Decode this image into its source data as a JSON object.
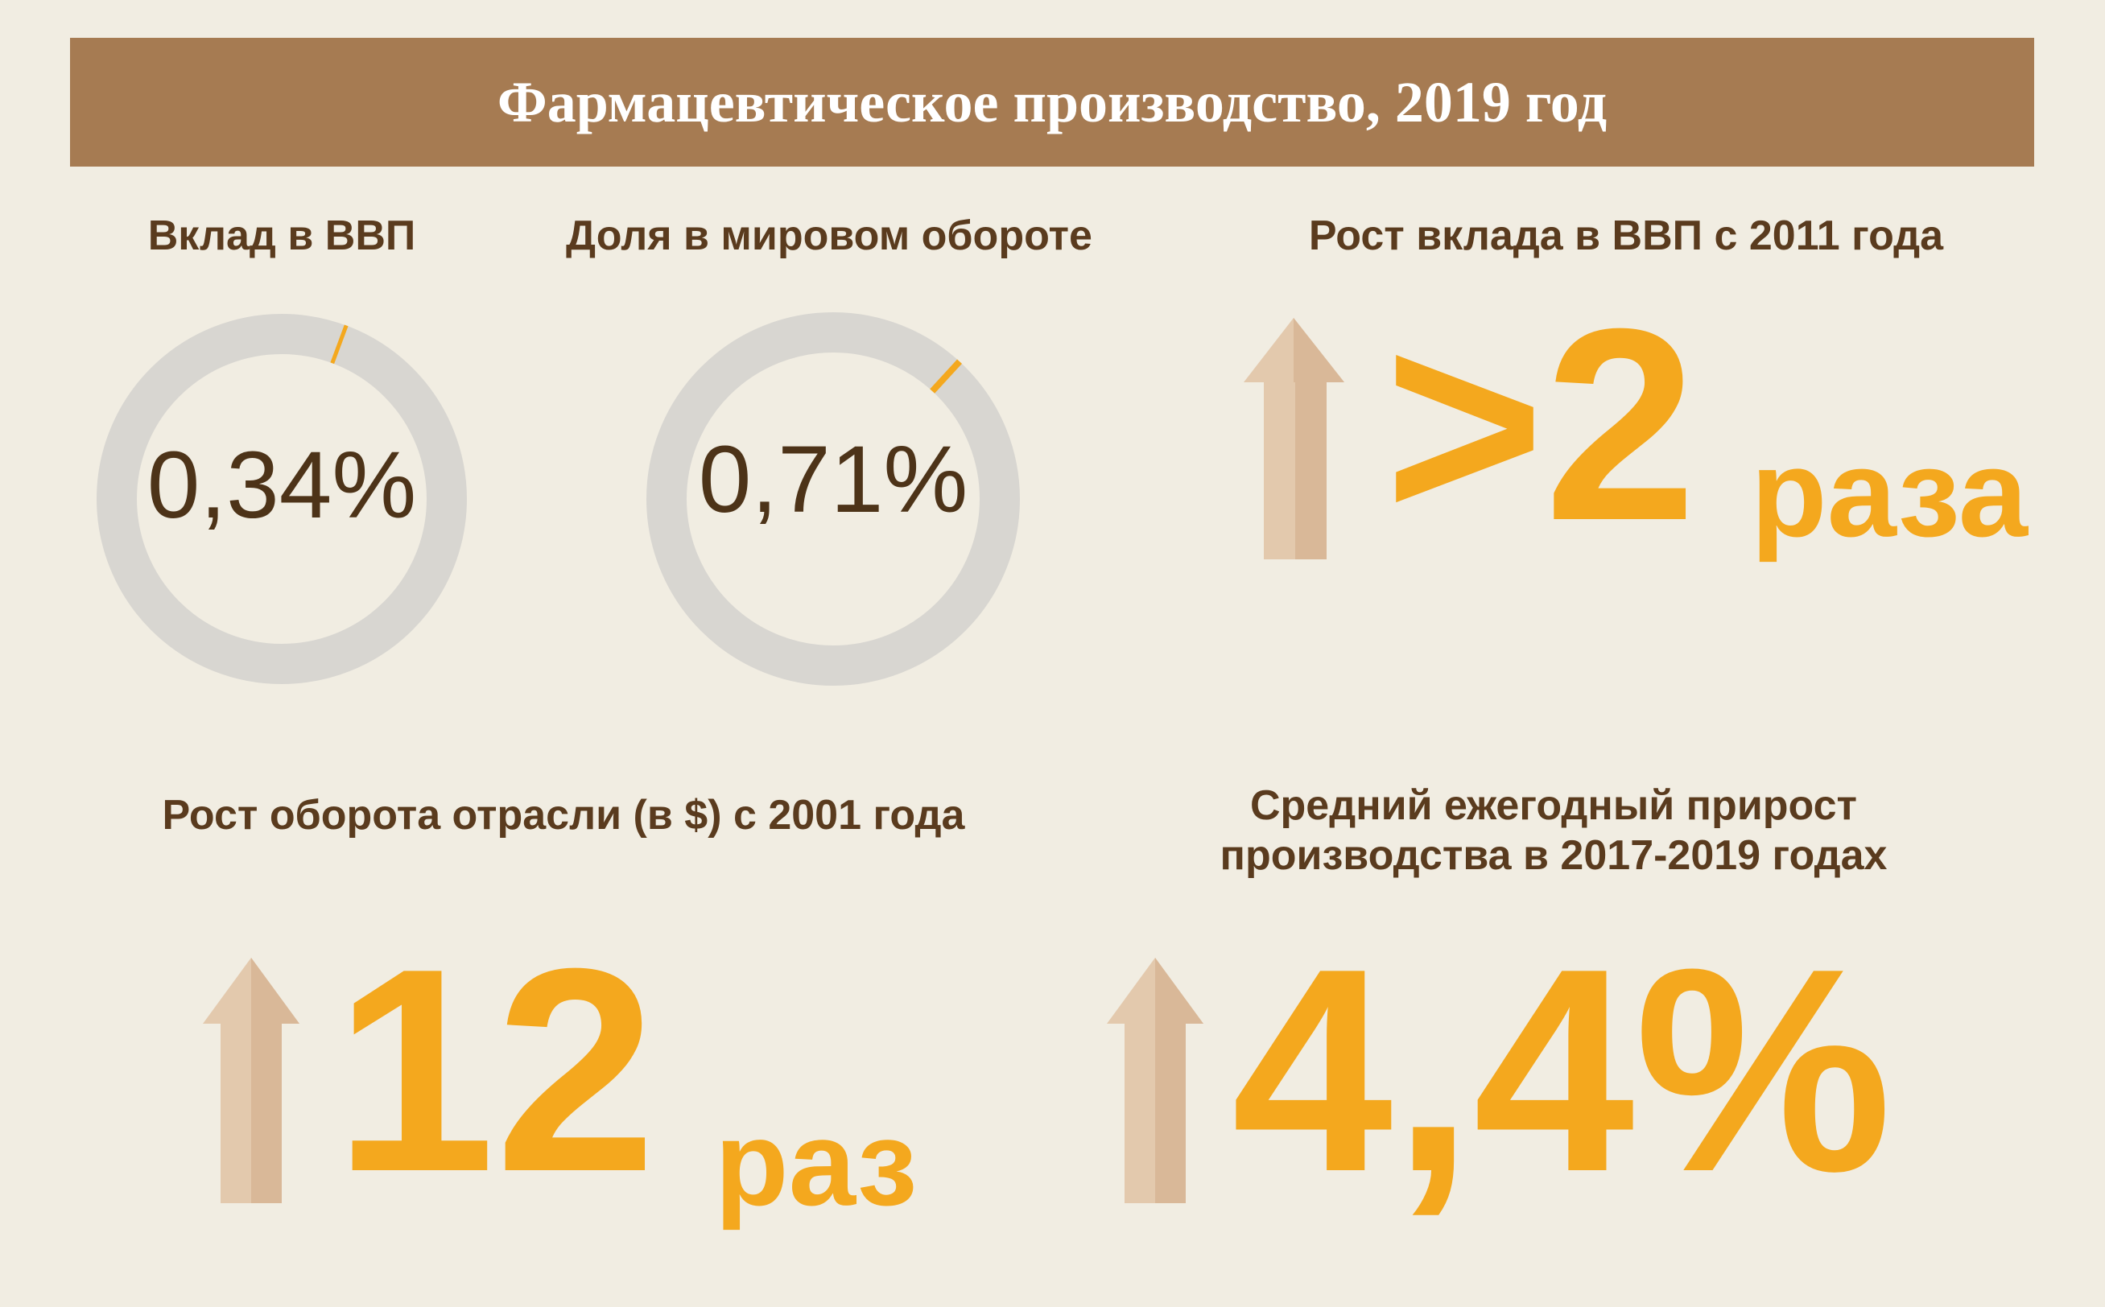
{
  "title": "Фармацевтическое производство, 2019 год",
  "colors": {
    "header": "#a67b52",
    "background": "#f1ede2",
    "accent": "#f4a81e",
    "ring": "#d8d6d1",
    "arrow_light": "#e3c9ad",
    "arrow_dark": "#d9b898",
    "text_dark": "#5a3b1e"
  },
  "chart_data": [
    {
      "type": "pie",
      "title": "Вклад в ВВП",
      "value_label": "0,34%",
      "values": [
        0.34,
        99.66
      ]
    },
    {
      "type": "pie",
      "title": "Доля в мировом обороте",
      "value_label": "0,71%",
      "values": [
        0.71,
        99.29
      ]
    }
  ],
  "stats": {
    "gdp_growth": {
      "label": "Рост вклада в ВВП с 2011 года",
      "value": ">2",
      "unit": "раза",
      "icon": "arrow-up-icon"
    },
    "turnover_growth": {
      "label": "Рост оборота отрасли (в $) с 2001 года",
      "value": "12",
      "unit": "раз",
      "icon": "arrow-up-icon"
    },
    "annual_growth": {
      "label_line1": "Средний ежегодный прирост",
      "label_line2": "производства в 2017-2019 годах",
      "value": "4,4%",
      "icon": "arrow-up-icon"
    }
  }
}
